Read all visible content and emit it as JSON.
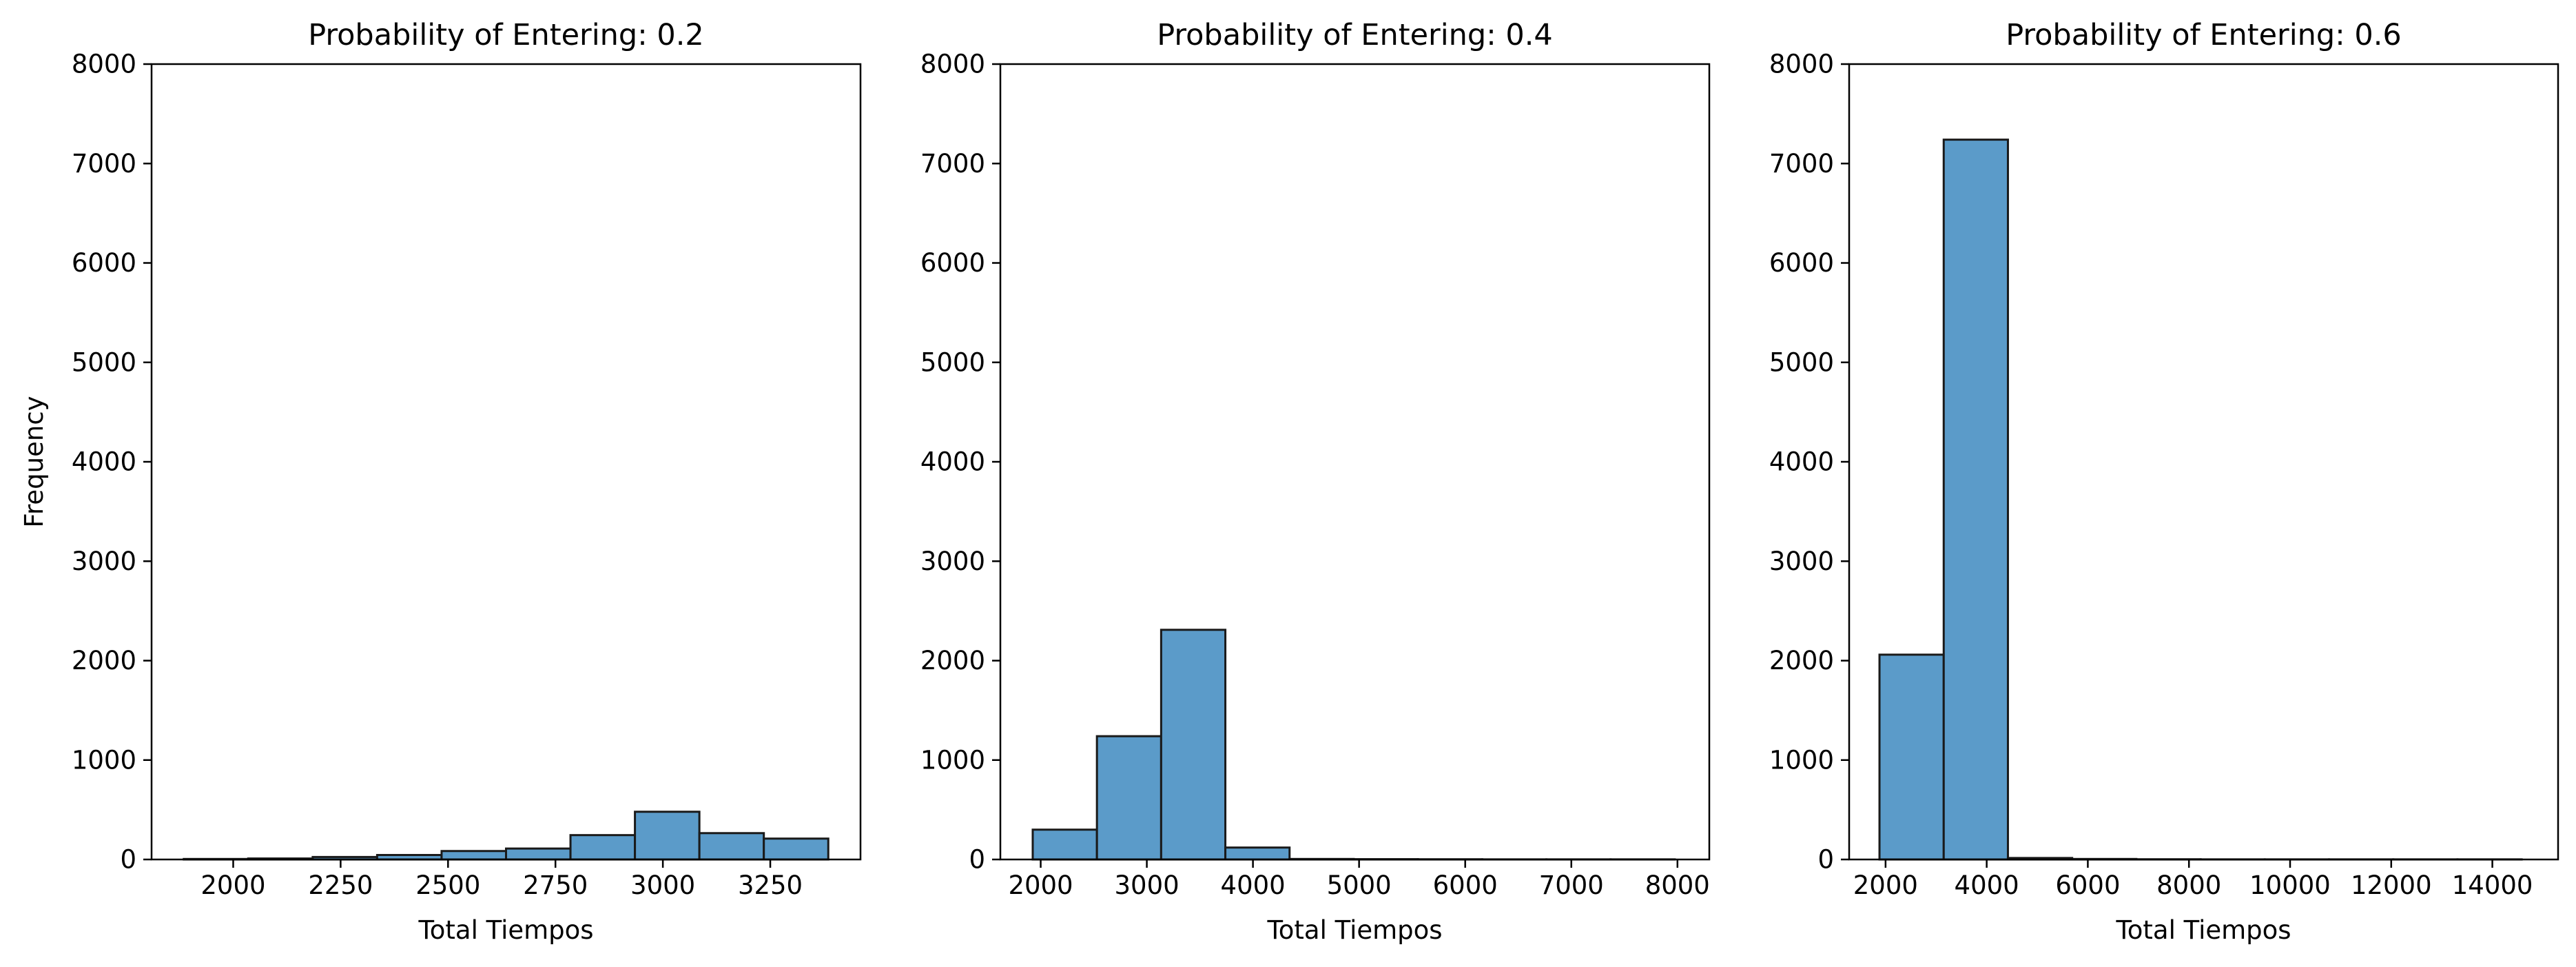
{
  "figure": {
    "background": "#ffffff"
  },
  "chart_data": [
    {
      "type": "bar",
      "title": "Probability of Entering: 0.2",
      "xlabel": "Total Tiempos",
      "ylabel": "Frequency",
      "xlim": [
        1810,
        3460
      ],
      "ylim": [
        0,
        8000
      ],
      "xticks": [
        2000,
        2250,
        2500,
        2750,
        3000,
        3250
      ],
      "yticks": [
        0,
        1000,
        2000,
        3000,
        4000,
        5000,
        6000,
        7000,
        8000
      ],
      "bar_color": "#5b9bc9",
      "bins": [
        {
          "x0": 1885,
          "x1": 2035,
          "count": 5
        },
        {
          "x0": 2035,
          "x1": 2185,
          "count": 10
        },
        {
          "x0": 2185,
          "x1": 2335,
          "count": 25
        },
        {
          "x0": 2335,
          "x1": 2485,
          "count": 45
        },
        {
          "x0": 2485,
          "x1": 2635,
          "count": 85
        },
        {
          "x0": 2635,
          "x1": 2785,
          "count": 110
        },
        {
          "x0": 2785,
          "x1": 2935,
          "count": 245
        },
        {
          "x0": 2935,
          "x1": 3085,
          "count": 480
        },
        {
          "x0": 3085,
          "x1": 3235,
          "count": 265
        },
        {
          "x0": 3235,
          "x1": 3385,
          "count": 210
        }
      ]
    },
    {
      "type": "bar",
      "title": "Probability of Entering: 0.4",
      "xlabel": "Total Tiempos",
      "ylabel": "",
      "xlim": [
        1620,
        8300
      ],
      "ylim": [
        0,
        8000
      ],
      "xticks": [
        2000,
        3000,
        4000,
        5000,
        6000,
        7000,
        8000
      ],
      "yticks": [
        0,
        1000,
        2000,
        3000,
        4000,
        5000,
        6000,
        7000,
        8000
      ],
      "bar_color": "#5b9bc9",
      "bins": [
        {
          "x0": 1925,
          "x1": 2530,
          "count": 300
        },
        {
          "x0": 2530,
          "x1": 3135,
          "count": 1240
        },
        {
          "x0": 3135,
          "x1": 3740,
          "count": 2310
        },
        {
          "x0": 3740,
          "x1": 4345,
          "count": 120
        },
        {
          "x0": 4345,
          "x1": 4950,
          "count": 5
        },
        {
          "x0": 4950,
          "x1": 5555,
          "count": 3
        },
        {
          "x0": 5555,
          "x1": 6160,
          "count": 2
        },
        {
          "x0": 6160,
          "x1": 6765,
          "count": 1
        },
        {
          "x0": 6765,
          "x1": 7370,
          "count": 1
        },
        {
          "x0": 7370,
          "x1": 7975,
          "count": 1
        }
      ]
    },
    {
      "type": "bar",
      "title": "Probability of Entering: 0.6",
      "xlabel": "Total Tiempos",
      "ylabel": "",
      "xlim": [
        1280,
        15300
      ],
      "ylim": [
        0,
        8000
      ],
      "xticks": [
        2000,
        4000,
        6000,
        8000,
        10000,
        12000,
        14000
      ],
      "yticks": [
        0,
        1000,
        2000,
        3000,
        4000,
        5000,
        6000,
        7000,
        8000
      ],
      "bar_color": "#5b9bc9",
      "bins": [
        {
          "x0": 1880,
          "x1": 3150,
          "count": 2060
        },
        {
          "x0": 3150,
          "x1": 4420,
          "count": 7240
        },
        {
          "x0": 4420,
          "x1": 5690,
          "count": 15
        },
        {
          "x0": 5690,
          "x1": 6960,
          "count": 5
        },
        {
          "x0": 6960,
          "x1": 8230,
          "count": 2
        },
        {
          "x0": 8230,
          "x1": 9500,
          "count": 1
        },
        {
          "x0": 9500,
          "x1": 10770,
          "count": 1
        },
        {
          "x0": 10770,
          "x1": 12040,
          "count": 1
        },
        {
          "x0": 12040,
          "x1": 13310,
          "count": 1
        },
        {
          "x0": 13310,
          "x1": 14580,
          "count": 1
        }
      ]
    }
  ]
}
